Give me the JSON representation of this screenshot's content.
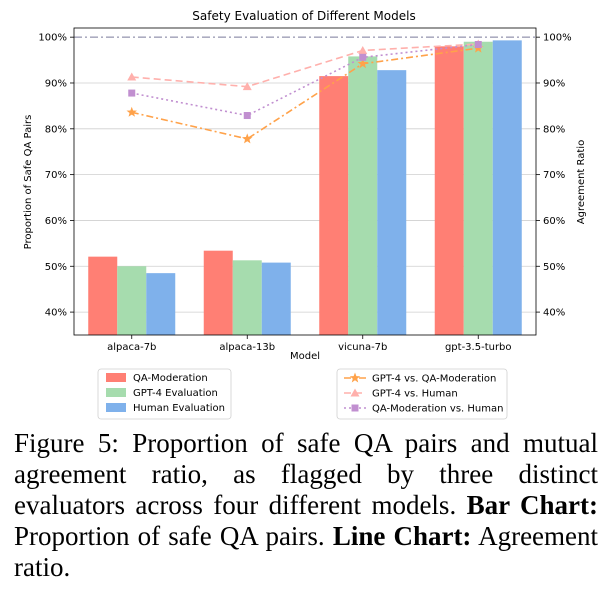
{
  "chart_data": {
    "type": "bar",
    "title": "Safety Evaluation of Different Models",
    "xlabel": "Model",
    "ylabel": "Proportion of Safe QA Pairs",
    "ylabel_right": "Agreement Ratio",
    "ylim": [
      35,
      102
    ],
    "yticks": [
      "40%",
      "50%",
      "60%",
      "70%",
      "80%",
      "90%",
      "100%"
    ],
    "ytick_values": [
      40,
      50,
      60,
      70,
      80,
      90,
      100
    ],
    "categories": [
      "alpaca-7b",
      "alpaca-13b",
      "vicuna-7b",
      "gpt-3.5-turbo"
    ],
    "series": [
      {
        "name": "QA-Moderation",
        "color": "#ff7f74",
        "values": [
          52.1,
          53.4,
          91.5,
          98.0
        ]
      },
      {
        "name": "GPT-4 Evaluation",
        "color": "#a6dcae",
        "values": [
          50.0,
          51.3,
          95.8,
          99.0
        ]
      },
      {
        "name": "Human Evaluation",
        "color": "#7fb1eb",
        "values": [
          48.5,
          50.8,
          92.8,
          99.3
        ]
      }
    ],
    "lines": [
      {
        "name": "GPT-4 vs. QA-Moderation",
        "color": "#ffa24a",
        "marker": "star",
        "dash": "7,3,2,3",
        "values": [
          83.6,
          77.8,
          94.2,
          97.6
        ]
      },
      {
        "name": "GPT-4 vs. Human",
        "color": "#ffb0ac",
        "marker": "triangle",
        "dash": "7,4",
        "values": [
          91.3,
          89.2,
          97.1,
          98.5
        ]
      },
      {
        "name": "QA-Moderation vs. Human",
        "color": "#c18fd0",
        "marker": "square",
        "dash": "2,3",
        "values": [
          87.8,
          82.9,
          95.6,
          98.4
        ]
      }
    ],
    "reference_line": 100
  },
  "caption": {
    "label": "Figure 5:",
    "text": "Proportion of safe QA pairs and mutual agreement ratio, as flagged by three distinct evaluators across four different models.",
    "bar_label": "Bar Chart:",
    "bar_text": "Proportion of safe QA pairs.",
    "line_label": "Line Chart:",
    "line_text": "Agreement ratio."
  }
}
